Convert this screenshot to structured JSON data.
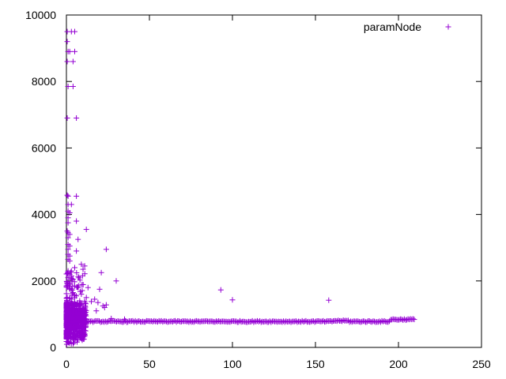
{
  "chart_data": {
    "type": "scatter",
    "title": "",
    "xlabel": "",
    "ylabel": "",
    "xlim": [
      0,
      250
    ],
    "ylim": [
      0,
      10000
    ],
    "x_ticks": [
      0,
      50,
      100,
      150,
      200,
      250
    ],
    "y_ticks": [
      0,
      2000,
      4000,
      6000,
      8000,
      10000
    ],
    "grid": false,
    "legend_position": "top-right",
    "series": [
      {
        "name": "paramNode",
        "color": "#9400d3",
        "marker": "+",
        "points_outliers": [
          [
            0.5,
            9500
          ],
          [
            3,
            9500
          ],
          [
            5,
            9500
          ],
          [
            0.5,
            9200
          ],
          [
            1,
            8900
          ],
          [
            2,
            8900
          ],
          [
            5,
            8900
          ],
          [
            0.5,
            8600
          ],
          [
            4,
            8600
          ],
          [
            1,
            7850
          ],
          [
            4,
            7850
          ],
          [
            0.5,
            6900
          ],
          [
            6,
            6900
          ],
          [
            0.5,
            4580
          ],
          [
            1,
            4550
          ],
          [
            6,
            4550
          ],
          [
            1,
            4300
          ],
          [
            3,
            4300
          ],
          [
            1,
            4100
          ],
          [
            2,
            4050
          ],
          [
            1,
            3900
          ],
          [
            6,
            3800
          ],
          [
            1,
            3750
          ],
          [
            12,
            3550
          ],
          [
            0.5,
            3500
          ],
          [
            1,
            3450
          ],
          [
            2,
            3400
          ],
          [
            1,
            3300
          ],
          [
            7,
            3250
          ],
          [
            1,
            3100
          ],
          [
            2,
            3050
          ],
          [
            1,
            2950
          ],
          [
            24,
            2950
          ],
          [
            6,
            2900
          ],
          [
            1,
            2800
          ],
          [
            2,
            2750
          ],
          [
            1,
            2650
          ],
          [
            2,
            2600
          ],
          [
            9,
            2500
          ],
          [
            11,
            2450
          ],
          [
            5,
            2400
          ],
          [
            10,
            2350
          ],
          [
            1,
            2300
          ],
          [
            3,
            2300
          ],
          [
            21,
            2250
          ],
          [
            2,
            2200
          ],
          [
            1,
            2100
          ],
          [
            4,
            2050
          ],
          [
            30,
            2000
          ],
          [
            2,
            1950
          ],
          [
            5,
            1850
          ],
          [
            13,
            1800
          ],
          [
            3,
            1760
          ],
          [
            20,
            1750
          ],
          [
            93,
            1730
          ],
          [
            4,
            1650
          ],
          [
            9,
            1600
          ],
          [
            6,
            1550
          ],
          [
            12,
            1500
          ],
          [
            3,
            1450
          ],
          [
            17,
            1450
          ],
          [
            100,
            1430
          ],
          [
            158,
            1420
          ],
          [
            8,
            1400
          ],
          [
            15,
            1380
          ],
          [
            19,
            1350
          ],
          [
            24,
            1280
          ],
          [
            22,
            1250
          ],
          [
            23,
            1200
          ],
          [
            10,
            1150
          ],
          [
            18,
            1100
          ],
          [
            27,
            870
          ],
          [
            35,
            850
          ]
        ],
        "dense_cluster": {
          "x_range": [
            0,
            12
          ],
          "y_range": [
            80,
            2300
          ]
        },
        "baseline": {
          "x_range": [
            10,
            210
          ],
          "y_mean": 780,
          "y_spread": 40,
          "bump_x_range": [
            195,
            210
          ],
          "bump_y_mean": 840
        }
      }
    ]
  }
}
